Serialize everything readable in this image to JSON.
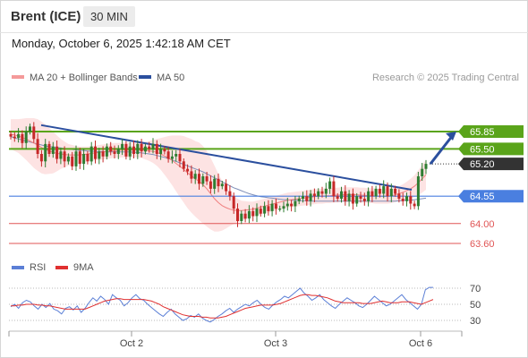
{
  "header": {
    "instrument": "Brent (ICE)",
    "timeframe": "30 MIN",
    "timestamp": "Monday, October 6, 2025 1:42:18 AM CET"
  },
  "legend": {
    "bollinger_label": "MA 20 + Bollinger Bands",
    "ma50_label": "MA 50",
    "credit": "Research © 2025 Trading Central",
    "rsi_label": "RSI",
    "rsi_ma_label": "9MA"
  },
  "colors": {
    "resistance": "#5aa41a",
    "pivot": "#4a7fe0",
    "support": "#e05555",
    "current": "#333333",
    "trendline": "#2b4f9e",
    "bollinger_fill": "#fde3e3",
    "ma20": "#f08080",
    "ma50": "#7f8fb8",
    "candle_up": "#2e7d32",
    "candle_down": "#c62828",
    "rsi": "#5b7fd6",
    "rsi_ma": "#e03030"
  },
  "chart_data": [
    {
      "type": "candlestick",
      "title": "Brent (ICE)",
      "timeframe": "30 MIN",
      "ylim": [
        63.4,
        66.2
      ],
      "x_ticks": [
        "Oct 2",
        "Oct 3",
        "Oct 6"
      ],
      "levels": [
        {
          "label": "65.85",
          "value": 65.85,
          "kind": "resistance"
        },
        {
          "label": "65.50",
          "value": 65.5,
          "kind": "resistance"
        },
        {
          "label": "65.20",
          "value": 65.2,
          "kind": "current"
        },
        {
          "label": "64.55",
          "value": 64.55,
          "kind": "pivot"
        },
        {
          "label": "64.00",
          "value": 64.0,
          "kind": "support"
        },
        {
          "label": "63.60",
          "value": 63.6,
          "kind": "support"
        }
      ],
      "close_series": [
        65.75,
        65.72,
        65.8,
        65.62,
        65.85,
        65.95,
        65.7,
        65.4,
        65.25,
        65.6,
        65.4,
        65.55,
        65.3,
        65.45,
        65.25,
        65.35,
        65.15,
        65.45,
        65.2,
        65.4,
        65.25,
        65.55,
        65.3,
        65.45,
        65.35,
        65.55,
        65.45,
        65.4,
        65.5,
        65.6,
        65.35,
        65.55,
        65.4,
        65.6,
        65.45,
        65.55,
        65.5,
        65.6,
        65.4,
        65.5,
        65.45,
        65.3,
        65.35,
        65.4,
        65.25,
        65.1,
        65.05,
        64.9,
        65.0,
        64.8,
        64.95,
        64.85,
        64.7,
        64.9,
        64.75,
        64.8,
        64.65,
        64.55,
        64.3,
        64.05,
        64.2,
        64.1,
        64.25,
        64.15,
        64.3,
        64.2,
        64.35,
        64.25,
        64.4,
        64.3,
        64.3,
        64.35,
        64.4,
        64.35,
        64.45,
        64.5,
        64.55,
        64.45,
        64.6,
        64.55,
        64.65,
        64.6,
        64.7,
        64.85,
        64.55,
        64.5,
        64.65,
        64.45,
        64.6,
        64.4,
        64.55,
        64.5,
        64.45,
        64.65,
        64.55,
        64.7,
        64.6,
        64.75,
        64.55,
        64.7,
        64.6,
        64.5,
        64.45,
        64.55,
        64.4,
        64.35,
        64.95,
        65.1,
        65.2
      ],
      "ma20_series": [
        65.8,
        65.78,
        65.76,
        65.73,
        65.7,
        65.66,
        65.62,
        65.58,
        65.53,
        65.49,
        65.46,
        65.43,
        65.41,
        65.4,
        65.39,
        65.38,
        65.38,
        65.38,
        65.38,
        65.39,
        65.4,
        65.41,
        65.42,
        65.43,
        65.44,
        65.45,
        65.46,
        65.47,
        65.47,
        65.48,
        65.48,
        65.48,
        65.48,
        65.48,
        65.48,
        65.47,
        65.46,
        65.45,
        65.43,
        65.4,
        65.36,
        65.32,
        65.27,
        65.21,
        65.15,
        65.09,
        65.02,
        64.96,
        64.9,
        64.85,
        64.78,
        64.7,
        64.6,
        64.5,
        64.42,
        64.36,
        64.32,
        64.29,
        64.27,
        64.26,
        64.26,
        64.27,
        64.28,
        64.29,
        64.31,
        64.33,
        64.35,
        64.37,
        64.39,
        64.41,
        64.43,
        64.45,
        64.47,
        64.48,
        64.49,
        64.5,
        64.51,
        64.52,
        64.53,
        64.54,
        64.55,
        64.55,
        64.56,
        64.56,
        64.57,
        64.57,
        64.58,
        64.58,
        64.58,
        64.58,
        64.58,
        64.57,
        64.57,
        64.56,
        64.56,
        64.55,
        64.55,
        64.55,
        64.55,
        64.56,
        64.58,
        64.6,
        64.63,
        64.66,
        64.7,
        64.75,
        64.82,
        64.9,
        64.98
      ],
      "ma50_series": [
        65.75,
        65.72,
        65.7,
        65.68,
        65.66,
        65.64,
        65.62,
        65.6,
        65.58,
        65.56,
        65.55,
        65.54,
        65.53,
        65.52,
        65.51,
        65.5,
        65.49,
        65.48,
        65.47,
        65.47,
        65.46,
        65.46,
        65.45,
        65.45,
        65.45,
        65.44,
        65.44,
        65.44,
        65.44,
        65.44,
        65.44,
        65.44,
        65.43,
        65.43,
        65.42,
        65.41,
        65.4,
        65.39,
        65.37,
        65.35,
        65.33,
        65.31,
        65.28,
        65.25,
        65.22,
        65.19,
        65.16,
        65.13,
        65.1,
        65.07,
        65.04,
        65.0,
        64.96,
        64.92,
        64.88,
        64.84,
        64.8,
        64.76,
        64.72,
        64.69,
        64.66,
        64.63,
        64.6,
        64.58,
        64.56,
        64.54,
        64.53,
        64.52,
        64.51,
        64.5,
        64.49,
        64.48,
        64.48,
        64.47,
        64.47,
        64.46,
        64.46,
        64.46,
        64.45,
        64.45,
        64.45,
        64.45,
        64.45,
        64.45,
        64.45,
        64.45,
        64.45,
        64.45,
        64.45,
        64.45,
        64.45,
        64.45,
        64.45,
        64.45,
        64.45,
        64.45,
        64.45,
        64.45,
        64.45,
        64.45,
        64.45,
        64.46,
        64.46,
        64.47,
        64.47,
        64.48,
        64.49,
        64.5,
        64.51
      ],
      "band_width_series": [
        0.3,
        0.32,
        0.34,
        0.38,
        0.42,
        0.46,
        0.5,
        0.52,
        0.52,
        0.5,
        0.46,
        0.42,
        0.36,
        0.3,
        0.26,
        0.22,
        0.2,
        0.18,
        0.17,
        0.16,
        0.15,
        0.15,
        0.15,
        0.15,
        0.15,
        0.15,
        0.15,
        0.15,
        0.15,
        0.15,
        0.15,
        0.15,
        0.15,
        0.15,
        0.16,
        0.18,
        0.2,
        0.23,
        0.27,
        0.32,
        0.38,
        0.44,
        0.5,
        0.56,
        0.62,
        0.67,
        0.71,
        0.74,
        0.76,
        0.78,
        0.78,
        0.76,
        0.72,
        0.66,
        0.58,
        0.5,
        0.42,
        0.34,
        0.28,
        0.24,
        0.2,
        0.18,
        0.16,
        0.15,
        0.15,
        0.15,
        0.15,
        0.15,
        0.15,
        0.15,
        0.15,
        0.15,
        0.15,
        0.15,
        0.15,
        0.15,
        0.15,
        0.15,
        0.15,
        0.15,
        0.15,
        0.15,
        0.15,
        0.15,
        0.15,
        0.15,
        0.15,
        0.15,
        0.15,
        0.15,
        0.15,
        0.15,
        0.15,
        0.15,
        0.15,
        0.15,
        0.15,
        0.15,
        0.15,
        0.15,
        0.15,
        0.15,
        0.16,
        0.18,
        0.2,
        0.22,
        0.25,
        0.28,
        0.3
      ],
      "trendline": {
        "start": 65.98,
        "end": 64.68
      },
      "projection": {
        "from": 65.2,
        "to": 65.85
      }
    },
    {
      "type": "line",
      "title": "RSI",
      "ylim": [
        20,
        80
      ],
      "y_ticks": [
        "70",
        "50",
        "30"
      ],
      "series": [
        {
          "name": "RSI",
          "values": [
            47,
            50,
            45,
            52,
            55,
            53,
            48,
            44,
            50,
            46,
            51,
            44,
            42,
            38,
            45,
            47,
            43,
            48,
            40,
            45,
            52,
            58,
            54,
            60,
            56,
            50,
            62,
            58,
            55,
            48,
            52,
            58,
            62,
            57,
            55,
            50,
            46,
            42,
            38,
            35,
            40,
            44,
            38,
            34,
            30,
            32,
            36,
            34,
            38,
            33,
            30,
            28,
            31,
            35,
            38,
            42,
            45,
            40,
            44,
            47,
            50,
            48,
            52,
            55,
            50,
            46,
            44,
            49,
            53,
            56,
            60,
            58,
            62,
            66,
            70,
            64,
            60,
            55,
            58,
            62,
            56,
            52,
            48,
            45,
            50,
            54,
            58,
            55,
            52,
            48,
            46,
            50,
            55,
            60,
            56,
            52,
            48,
            50,
            54,
            58,
            62,
            56,
            52,
            48,
            44,
            50,
            68,
            71,
            71
          ]
        },
        {
          "name": "9MA",
          "values": [
            48,
            48,
            49,
            49,
            50,
            50,
            50,
            49,
            49,
            48,
            48,
            47,
            46,
            45,
            44,
            44,
            44,
            44,
            44,
            44,
            46,
            48,
            50,
            52,
            54,
            55,
            56,
            57,
            57,
            56,
            56,
            56,
            56,
            56,
            56,
            55,
            54,
            52,
            50,
            47,
            45,
            43,
            41,
            39,
            37,
            36,
            35,
            35,
            35,
            34,
            34,
            33,
            33,
            33,
            34,
            35,
            37,
            39,
            41,
            43,
            45,
            46,
            47,
            48,
            49,
            49,
            49,
            49,
            50,
            51,
            53,
            55,
            57,
            59,
            61,
            62,
            62,
            61,
            61,
            60,
            59,
            58,
            56,
            54,
            53,
            52,
            52,
            52,
            52,
            52,
            51,
            51,
            51,
            52,
            53,
            54,
            53,
            52,
            52,
            52,
            53,
            53,
            53,
            52,
            51,
            50,
            52,
            54,
            56
          ]
        }
      ]
    }
  ]
}
